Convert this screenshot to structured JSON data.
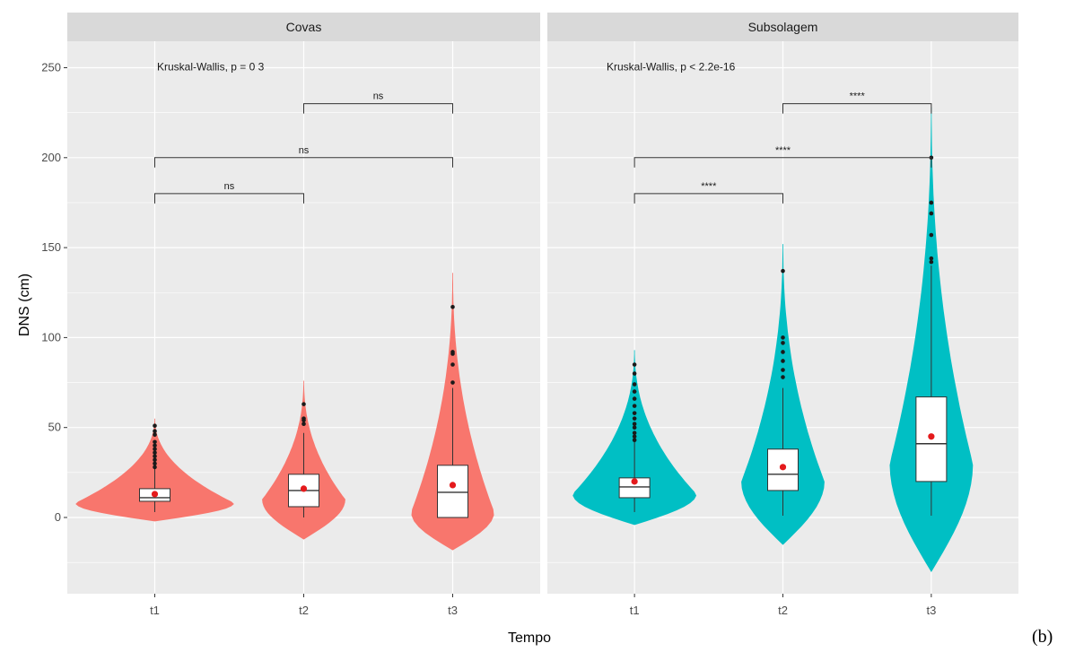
{
  "panel_tag": "(b)",
  "chart_data": {
    "type": "violin",
    "xlabel": "Tempo",
    "ylabel": "DNS (cm)",
    "ylim": [
      -42,
      262
    ],
    "yticks": [
      0,
      50,
      100,
      150,
      200,
      250
    ],
    "categories": [
      "t1",
      "t2",
      "t3"
    ],
    "grid": true,
    "colors": {
      "Covas": "#F8766D",
      "Subsolagem": "#00BFC4",
      "mean": "#E41A1C",
      "panel_bg": "#EBEBEB",
      "strip_bg": "#D9D9D9"
    },
    "panels": [
      {
        "name": "Covas",
        "test_label": "Kruskal-Wallis, p = 0 3",
        "groups": [
          {
            "x": "t1",
            "violin_range": [
              -2,
              55
            ],
            "violin_peak": 8,
            "q1": 9,
            "median": 11,
            "q3": 16,
            "whisker": [
              3,
              27
            ],
            "mean": 13,
            "outliers": [
              28,
              30,
              32,
              34,
              36,
              38,
              40,
              42,
              46,
              48,
              51
            ]
          },
          {
            "x": "t2",
            "violin_range": [
              -12,
              76
            ],
            "violin_peak": 10,
            "q1": 6,
            "median": 15,
            "q3": 24,
            "whisker": [
              0,
              47
            ],
            "mean": 16,
            "outliers": [
              52,
              54,
              55,
              63
            ]
          },
          {
            "x": "t3",
            "violin_range": [
              -18,
              136
            ],
            "violin_peak": 3,
            "q1": 0,
            "median": 14,
            "q3": 29,
            "whisker": [
              0,
              72
            ],
            "mean": 18,
            "outliers": [
              75,
              85,
              91,
              92,
              117
            ]
          }
        ],
        "comparisons": [
          {
            "from": "t1",
            "to": "t2",
            "label": "ns",
            "y": 180
          },
          {
            "from": "t1",
            "to": "t3",
            "label": "ns",
            "y": 200
          },
          {
            "from": "t2",
            "to": "t3",
            "label": "ns",
            "y": 230
          }
        ]
      },
      {
        "name": "Subsolagem",
        "test_label": "Kruskal-Wallis, p < 2.2e-16",
        "groups": [
          {
            "x": "t1",
            "violin_range": [
              -4,
              93
            ],
            "violin_peak": 13,
            "q1": 11,
            "median": 17,
            "q3": 22,
            "whisker": [
              3,
              42
            ],
            "mean": 20,
            "outliers": [
              43,
              45,
              47,
              50,
              52,
              55,
              58,
              62,
              66,
              70,
              74,
              80,
              85
            ]
          },
          {
            "x": "t2",
            "violin_range": [
              -15,
              152
            ],
            "violin_peak": 20,
            "q1": 15,
            "median": 24,
            "q3": 38,
            "whisker": [
              1,
              72
            ],
            "mean": 28,
            "outliers": [
              78,
              82,
              87,
              92,
              97,
              100,
              137
            ]
          },
          {
            "x": "t3",
            "violin_range": [
              -30,
              228
            ],
            "violin_peak": 30,
            "q1": 20,
            "median": 41,
            "q3": 67,
            "whisker": [
              1,
              140
            ],
            "mean": 45,
            "outliers": [
              142,
              144,
              157,
              169,
              175,
              200
            ]
          }
        ],
        "comparisons": [
          {
            "from": "t1",
            "to": "t2",
            "label": "****",
            "y": 180
          },
          {
            "from": "t1",
            "to": "t3",
            "label": "****",
            "y": 200
          },
          {
            "from": "t2",
            "to": "t3",
            "label": "****",
            "y": 230
          }
        ]
      }
    ]
  }
}
